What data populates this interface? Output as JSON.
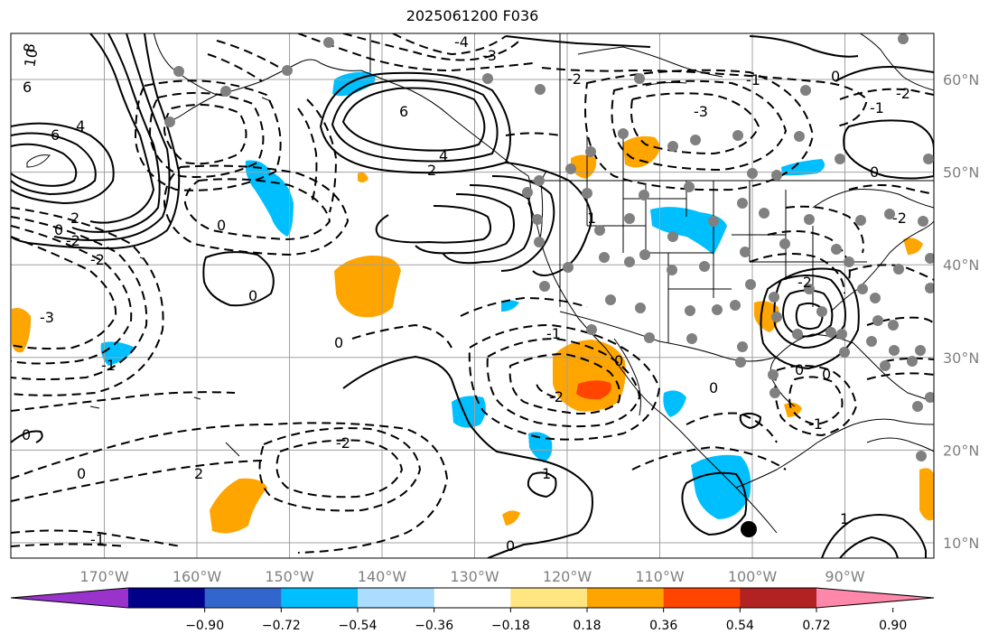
{
  "title": "2025061200 F036",
  "map": {
    "lon_range": [
      "180°W",
      "85°W"
    ],
    "lat_range": [
      "8°N",
      "65°N"
    ],
    "lon_labels": [
      "170°W",
      "160°W",
      "150°W",
      "140°W",
      "130°W",
      "120°W",
      "110°W",
      "100°W",
      "90°W"
    ],
    "lat_labels": [
      "60°N",
      "50°N",
      "40°N",
      "30°N",
      "20°N",
      "10°N"
    ],
    "grid": true,
    "contour_style": {
      "positive": "solid black",
      "negative": "dashed black"
    },
    "contour_labels": [
      "10",
      "8",
      "6",
      "4",
      "2",
      "0",
      "-2",
      "-3",
      "-4",
      "6",
      "4",
      "2",
      "0",
      "-2",
      "-1",
      "-3",
      "-1",
      "0",
      "-2",
      "-1",
      "1",
      "0",
      "2",
      "3",
      "4",
      "-1",
      "0",
      "1",
      "2",
      "-1",
      "-2",
      "-3",
      "1",
      "0"
    ],
    "station_dot_color": "#808080"
  },
  "colorbar": {
    "colors": [
      "#9933cc",
      "#000088",
      "#3366cc",
      "#00bfff",
      "#aaddff",
      "#ffffff",
      "#ffe680",
      "#ffa500",
      "#ff4500",
      "#b22222",
      "#ff88aa"
    ],
    "extend": "both",
    "ticks": [
      "−0.90",
      "−0.72",
      "−0.54",
      "−0.36",
      "−0.18",
      "0.18",
      "0.36",
      "0.54",
      "0.72",
      "0.90"
    ]
  }
}
